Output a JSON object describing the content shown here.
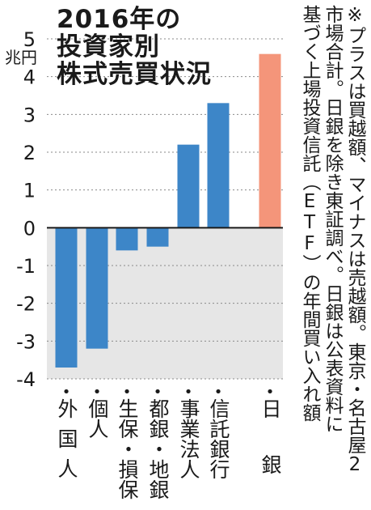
{
  "title_lines": [
    "2016年の",
    "投資家別",
    "株式売買状況"
  ],
  "unit_label": "兆円",
  "note_lines": [
    "※プラスは買越額、マイナスは売越額。東京・名古屋2",
    "市場合計。日銀を除き東証調べ。日銀は公表資料に",
    "基づく上場投資信託（ETF）の年間買い入れ額"
  ],
  "colors": {
    "positive": "#3d86c8",
    "negative": "#3d86c8",
    "boj": "#f4957a",
    "negative_area": "#e6e6e6",
    "grid": "#8a8a8a"
  },
  "chart_data": {
    "type": "bar",
    "categories": [
      "外国人",
      "個人",
      "生保・損保",
      "都銀・地銀",
      "事業法人",
      "信託銀行",
      "日銀"
    ],
    "values": [
      -3.7,
      -3.2,
      -0.6,
      -0.5,
      2.2,
      3.3,
      4.6
    ],
    "ylim": [
      -4,
      5
    ],
    "yticks": [
      5,
      4,
      3,
      2,
      1,
      0,
      -1,
      -2,
      -3,
      -4
    ],
    "ytick_labels": [
      "5",
      "4",
      "3",
      "2",
      "1",
      "0",
      "-1",
      "-2",
      "-3",
      "-4"
    ],
    "ylabel": "兆円",
    "grid": true
  }
}
